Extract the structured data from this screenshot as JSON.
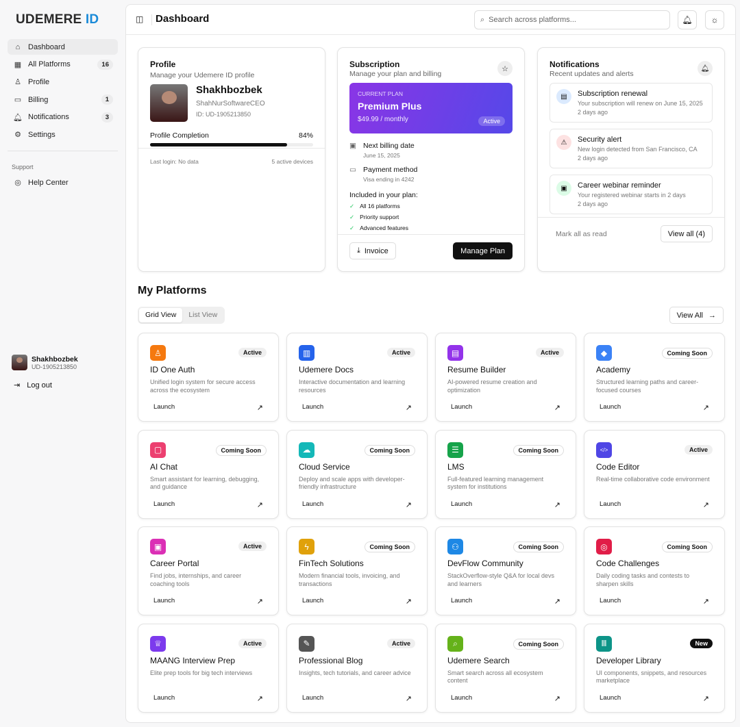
{
  "sidebar": {
    "logo_main": "UDEMERE",
    "logo_accent": "ID",
    "items": [
      {
        "label": "Dashboard",
        "icon": "home-icon",
        "glyph": "⌂"
      },
      {
        "label": "All Platforms",
        "count": "16",
        "icon": "grid-icon",
        "glyph": "▦"
      },
      {
        "label": "Profile",
        "icon": "user-icon",
        "glyph": "♙"
      },
      {
        "label": "Billing",
        "count": "1",
        "icon": "credit-card-icon",
        "glyph": "▭"
      },
      {
        "label": "Notifications",
        "count": "3",
        "icon": "bell-icon",
        "glyph": "🔔︎"
      },
      {
        "label": "Settings",
        "icon": "gear-icon",
        "glyph": "⚙"
      }
    ],
    "support_label": "Support",
    "help": "Help Center",
    "user": {
      "name": "Shakhbozbek",
      "id": "UD-1905213850"
    },
    "logout": "Log out"
  },
  "header": {
    "title": "Dashboard",
    "search_placeholder": "Search across platforms..."
  },
  "profile": {
    "title": "Profile",
    "subtitle": "Manage your Udemere ID profile",
    "name": "Shakhbozbek",
    "username": "ShahNurSoftwareCEO",
    "id": "ID: UD-1905213850",
    "completion_label": "Profile Completion",
    "completion": 84,
    "completion_text": "84%",
    "last_login": "Last login: No data",
    "devices": "5 active devices"
  },
  "subscription": {
    "title": "Subscription",
    "subtitle": "Manage your plan and billing",
    "plan_label": "CURRENT PLAN",
    "plan": "Premium Plus",
    "price": "$49.99 / monthly",
    "status": "Active",
    "billing_label": "Next billing date",
    "billing_date": "June 15, 2025",
    "payment_label": "Payment method",
    "payment": "Visa ending in 4242",
    "included_label": "Included in your plan:",
    "features": [
      "All 16 platforms",
      "Priority support",
      "Advanced features"
    ],
    "invoice": "Invoice",
    "manage": "Manage Plan"
  },
  "notifications": {
    "title": "Notifications",
    "subtitle": "Recent updates and alerts",
    "items": [
      {
        "title": "Subscription renewal",
        "desc": "Your subscription will renew on June 15, 2025",
        "time": "2 days ago",
        "color": "#dbeafe"
      },
      {
        "title": "Security alert",
        "desc": "New login detected from San Francisco, CA",
        "time": "2 days ago",
        "color": "#fde2e2"
      },
      {
        "title": "Career webinar reminder",
        "desc": "Your registered webinar starts in 2 days",
        "time": "2 days ago",
        "color": "#dcfce7"
      }
    ],
    "mark_read": "Mark all as read",
    "view_all": "View all (4)"
  },
  "platforms": {
    "title": "My Platforms",
    "grid_tab": "Grid View",
    "list_tab": "List View",
    "view_all": "View All",
    "launch": "Launch",
    "items": [
      {
        "name": "ID One Auth",
        "desc": "Unified login system for secure access across the ecosystem",
        "status": "Active",
        "color": "#f5790f",
        "icon": "user-check-icon"
      },
      {
        "name": "Udemere Docs",
        "desc": "Interactive documentation and learning resources",
        "status": "Active",
        "color": "#2563eb",
        "icon": "book-icon"
      },
      {
        "name": "Resume Builder",
        "desc": "AI-powered resume creation and optimization",
        "status": "Active",
        "color": "#9333ea",
        "icon": "file-icon"
      },
      {
        "name": "Academy",
        "desc": "Structured learning paths and career-focused courses",
        "status": "Coming Soon",
        "color": "#3b82f6",
        "icon": "graduation-cap-icon"
      },
      {
        "name": "AI Chat",
        "desc": "Smart assistant for learning, debugging, and guidance",
        "status": "Coming Soon",
        "color": "#ec4070",
        "icon": "message-icon"
      },
      {
        "name": "Cloud Service",
        "desc": "Deploy and scale apps with developer-friendly infrastructure",
        "status": "Coming Soon",
        "color": "#14b8b8",
        "icon": "cloud-icon"
      },
      {
        "name": "LMS",
        "desc": "Full-featured learning management system for institutions",
        "status": "Coming Soon",
        "color": "#16a34a",
        "icon": "server-icon"
      },
      {
        "name": "Code Editor",
        "desc": "Real-time collaborative code environment",
        "status": "Active",
        "color": "#4f46e5",
        "icon": "code-icon"
      },
      {
        "name": "Career Portal",
        "desc": "Find jobs, internships, and career coaching tools",
        "status": "Active",
        "color": "#db2fb5",
        "icon": "briefcase-icon"
      },
      {
        "name": "FinTech Solutions",
        "desc": "Modern financial tools, invoicing, and transactions",
        "status": "Coming Soon",
        "color": "#e0a10b",
        "icon": "lightning-icon"
      },
      {
        "name": "DevFlow Community",
        "desc": "StackOverflow-style Q&A for local devs and learners",
        "status": "Coming Soon",
        "color": "#1e88e5",
        "icon": "users-icon"
      },
      {
        "name": "Code Challenges",
        "desc": "Daily coding tasks and contests to sharpen skills",
        "status": "Coming Soon",
        "color": "#e11d48",
        "icon": "target-icon"
      },
      {
        "name": "MAANG Interview Prep",
        "desc": "Elite prep tools for big tech interviews",
        "status": "Active",
        "color": "#7c3aed",
        "icon": "trophy-icon"
      },
      {
        "name": "Professional Blog",
        "desc": "Insights, tech tutorials, and career advice",
        "status": "Active",
        "color": "#555555",
        "icon": "pen-icon"
      },
      {
        "name": "Udemere Search",
        "desc": "Smart search across all ecosystem content",
        "status": "Coming Soon",
        "color": "#65b21a",
        "icon": "search-icon"
      },
      {
        "name": "Developer Library",
        "desc": "UI components, snippets, and resources marketplace",
        "status": "New",
        "color": "#0d9488",
        "icon": "library-icon"
      }
    ]
  }
}
